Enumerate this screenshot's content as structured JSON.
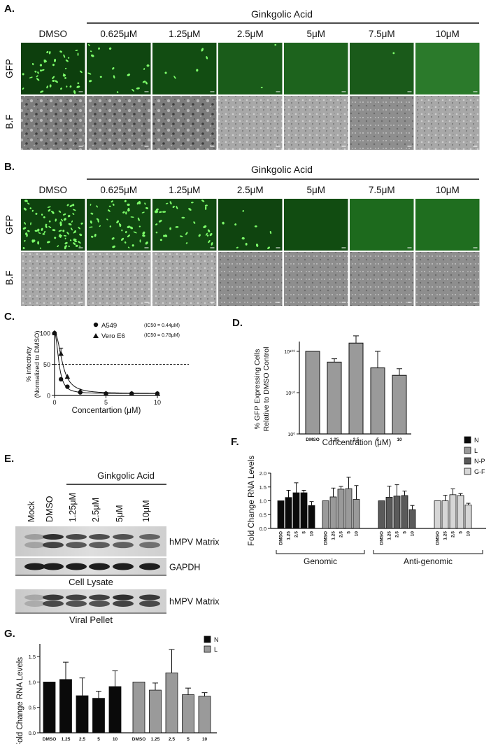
{
  "microscopy": {
    "columns": [
      "DMSO",
      "0.625μM",
      "1.25μM",
      "2.5μM",
      "5μM",
      "7.5μM",
      "10μM"
    ],
    "header": "Ginkgolic Acid",
    "rows": [
      "GFP",
      "B.F"
    ],
    "gfp_cells_A": [
      40,
      18,
      5,
      2,
      0,
      1,
      0
    ],
    "gfp_cells_B": [
      80,
      50,
      35,
      10,
      0,
      0,
      0
    ]
  },
  "panel_labels": {
    "a": "A.",
    "b": "B.",
    "c": "C.",
    "d": "D.",
    "e": "E.",
    "f": "F.",
    "g": "G."
  },
  "western": {
    "lanes": [
      "Mock",
      "DMSO",
      "1.25μM",
      "2.5μM",
      "5μM",
      "10μM"
    ],
    "header": "Ginkgolic Acid",
    "bands": [
      "hMPV Matrix",
      "GAPDH",
      "hMPV Matrix"
    ],
    "captions": [
      "Cell Lysate",
      "Viral Pellet"
    ]
  },
  "chart_data": [
    {
      "id": "C",
      "type": "scatter",
      "xlabel": "Concentartion (μM)",
      "ylabel_lines": [
        "% infectivity",
        "(Normalized to DMSO)"
      ],
      "xlim": [
        0,
        10
      ],
      "ylim": [
        0,
        100
      ],
      "x_ticks": [
        0,
        5,
        10
      ],
      "y_ticks": [
        0,
        50,
        100
      ],
      "ref_line": 50,
      "series": [
        {
          "name": "A549",
          "note": "(IC50 = 0.44μM)",
          "marker": "circle",
          "x": [
            0,
            0.625,
            1.25,
            2.5,
            5,
            7.5,
            10
          ],
          "y": [
            100,
            26,
            14,
            5,
            3,
            3,
            3
          ]
        },
        {
          "name": "Vero E6",
          "note": "(IC50 = 0.78μM)",
          "marker": "triangle",
          "x": [
            0,
            0.625,
            1.25,
            2.5,
            5,
            7.5,
            10
          ],
          "y": [
            100,
            67,
            30,
            7,
            3,
            3,
            3
          ]
        }
      ]
    },
    {
      "id": "D",
      "type": "bar",
      "categories": [
        "DMSO",
        "1.25",
        "2.5",
        "5",
        "10"
      ],
      "values": [
        100,
        87,
        110,
        80,
        71
      ],
      "errors": [
        0,
        16,
        35,
        80,
        32
      ],
      "y_scale": "log",
      "y_ticks": [
        "10¹⁰⁰",
        "10⁵⁰",
        "10⁰"
      ],
      "xlabel": "Concentration (μM)",
      "ylabel_lines": [
        "% GFP Expressing Cells",
        "Relative to DMSO Control"
      ]
    },
    {
      "id": "F",
      "type": "bar",
      "ylabel": "Fold Change RNA Levels",
      "ylim": [
        0,
        2.0
      ],
      "y_ticks": [
        "0.0",
        "0.5",
        "1.0",
        "1.5",
        "2.0"
      ],
      "categories": [
        "DMSO",
        "1.25",
        "2.5",
        "5",
        "10"
      ],
      "groups": [
        "Genomic",
        "Anti-genomic"
      ],
      "series": [
        {
          "name": "N",
          "values": [
            1.0,
            1.12,
            1.29,
            1.29,
            0.83
          ],
          "errors": [
            0,
            0.26,
            0.36,
            0.09,
            0.14
          ]
        },
        {
          "name": "L",
          "values": [
            1.0,
            1.14,
            1.42,
            1.44,
            1.05
          ],
          "errors": [
            0,
            0.32,
            0.1,
            0.41,
            0.5
          ]
        },
        {
          "name": "N-P",
          "values": [
            1.0,
            1.13,
            1.17,
            1.19,
            0.68
          ],
          "errors": [
            0,
            0.4,
            0.41,
            0.16,
            0.15
          ]
        },
        {
          "name": "G-F",
          "values": [
            1.0,
            1.0,
            1.22,
            1.19,
            0.85
          ],
          "errors": [
            0,
            0.2,
            0.21,
            0.07,
            0.06
          ]
        }
      ]
    },
    {
      "id": "G",
      "type": "bar",
      "ylabel": "Fold Change RNA Levels",
      "ylim": [
        0,
        1.75
      ],
      "y_ticks": [
        "0.0",
        "0.5",
        "1.0",
        "1.5"
      ],
      "categories": [
        "DMSO",
        "1.25",
        "2.5",
        "5",
        "10"
      ],
      "series": [
        {
          "name": "N",
          "values": [
            1.0,
            1.05,
            0.73,
            0.68,
            0.91
          ],
          "errors": [
            0,
            0.34,
            0.35,
            0.14,
            0.31
          ]
        },
        {
          "name": "L",
          "values": [
            1.0,
            0.84,
            1.18,
            0.75,
            0.72
          ],
          "errors": [
            0,
            0.14,
            0.46,
            0.13,
            0.07
          ]
        }
      ]
    }
  ],
  "colors": {
    "black": "#0a0a0a",
    "gray": "#9a9a9a",
    "dark_gray": "#5a5a5a",
    "light_gray": "#d6d6d6",
    "gfp": "#1f7a1f"
  }
}
